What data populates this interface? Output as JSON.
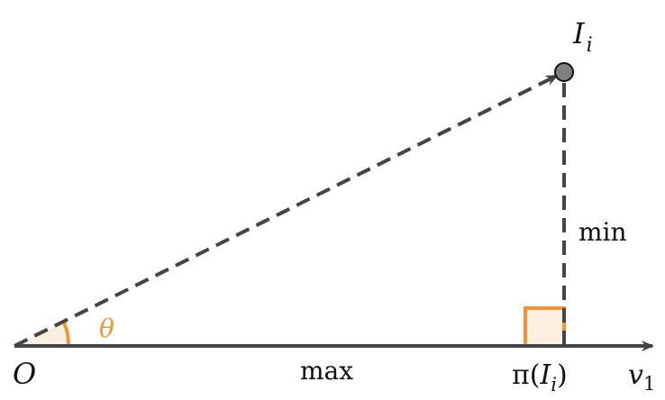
{
  "diagram": {
    "labels": {
      "origin": "O",
      "point": "I",
      "point_subscript": "i",
      "projection_prefix": "π(",
      "projection_var": "I",
      "projection_subscript": "i",
      "projection_suffix": ")",
      "axis": "v",
      "axis_subscript": "1",
      "angle": "θ",
      "max_label": "max",
      "min_label": "min"
    },
    "colors": {
      "line": "#444444",
      "accent": "#f39237",
      "accent_fill": "#fdeee2",
      "point_fill": "#808080",
      "text": "#111111"
    }
  }
}
